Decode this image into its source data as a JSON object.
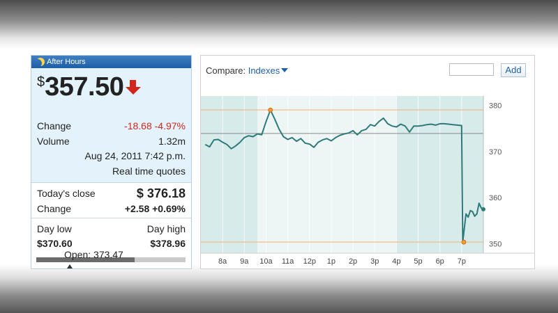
{
  "after_hours": {
    "header_label": "After Hours",
    "currency_symbol": "$",
    "price": "357.50",
    "change_label": "Change",
    "change_value": "-18.68 -4.97%",
    "volume_label": "Volume",
    "volume_value": "1.32m",
    "datetime": "Aug 24, 2011 7:42 p.m.",
    "realtime_label": "Real time quotes"
  },
  "close": {
    "close_label": "Today's close",
    "close_value": "$ 376.18",
    "change_label": "Change",
    "change_value": "+2.58 +0.69%"
  },
  "range": {
    "low_label": "Day low",
    "high_label": "Day high",
    "low_value": "$370.60",
    "high_value": "$378.96",
    "low": 370.6,
    "high": 378.96,
    "open": 373.47,
    "range_fraction": 0.66,
    "open_label": "Open: 373.47"
  },
  "compare": {
    "label": "Compare:",
    "dropdown": "Indexes",
    "input_value": "",
    "add_label": "Add"
  },
  "colors": {
    "line": "#2e7a7a",
    "shade": "#d6ebea",
    "highlight": "#ff9a2a",
    "negative": "#d0261c",
    "link": "#1f5fa6"
  },
  "chart_data": {
    "type": "line",
    "x_ticks": [
      "8a",
      "9a",
      "10a",
      "11a",
      "12p",
      "1p",
      "2p",
      "3p",
      "4p",
      "5p",
      "6p",
      "7p"
    ],
    "y_ticks": [
      "350",
      "360",
      "370",
      "380"
    ],
    "ylim": [
      348,
      382
    ],
    "reference_lines": [
      379,
      373.9,
      350.4
    ],
    "extremes": [
      {
        "x": 10.2,
        "y": 378.96
      },
      {
        "x": 19.1,
        "y": 350.4
      }
    ],
    "x": [
      7.2,
      7.4,
      7.6,
      7.8,
      8.0,
      8.2,
      8.4,
      8.6,
      8.8,
      9.0,
      9.2,
      9.4,
      9.6,
      9.8,
      10.0,
      10.2,
      10.4,
      10.6,
      10.8,
      11.0,
      11.2,
      11.4,
      11.6,
      11.8,
      12.0,
      12.2,
      12.4,
      12.6,
      12.8,
      13.0,
      13.2,
      13.4,
      13.6,
      13.8,
      14.0,
      14.2,
      14.4,
      14.6,
      14.8,
      15.0,
      15.2,
      15.4,
      15.6,
      15.8,
      16.0,
      16.2,
      16.4,
      16.6,
      16.8,
      17.0,
      17.2,
      17.4,
      17.6,
      17.8,
      18.0,
      18.2,
      18.4,
      18.6,
      18.8,
      19.0,
      19.05,
      19.1,
      19.2,
      19.3,
      19.4,
      19.5,
      19.6,
      19.7,
      19.8,
      19.9,
      20.0
    ],
    "values": [
      371.5,
      371.0,
      372.5,
      372.6,
      372.0,
      371.5,
      370.6,
      371.2,
      372.0,
      373.0,
      373.4,
      373.2,
      373.8,
      373.6,
      376.5,
      378.96,
      377.0,
      374.8,
      373.2,
      372.6,
      373.0,
      372.2,
      372.8,
      371.8,
      371.6,
      370.9,
      372.0,
      372.5,
      372.8,
      372.3,
      373.0,
      373.5,
      373.8,
      374.0,
      374.5,
      373.6,
      374.5,
      374.8,
      375.8,
      375.5,
      376.5,
      377.2,
      376.0,
      375.5,
      375.3,
      375.9,
      375.5,
      374.2,
      375.5,
      375.5,
      375.6,
      375.8,
      375.9,
      375.7,
      376.0,
      376.0,
      375.9,
      375.8,
      375.7,
      375.6,
      350.4,
      352.5,
      356.5,
      355.8,
      357.2,
      357.0,
      356.0,
      356.5,
      358.8,
      357.8,
      357.5
    ]
  }
}
